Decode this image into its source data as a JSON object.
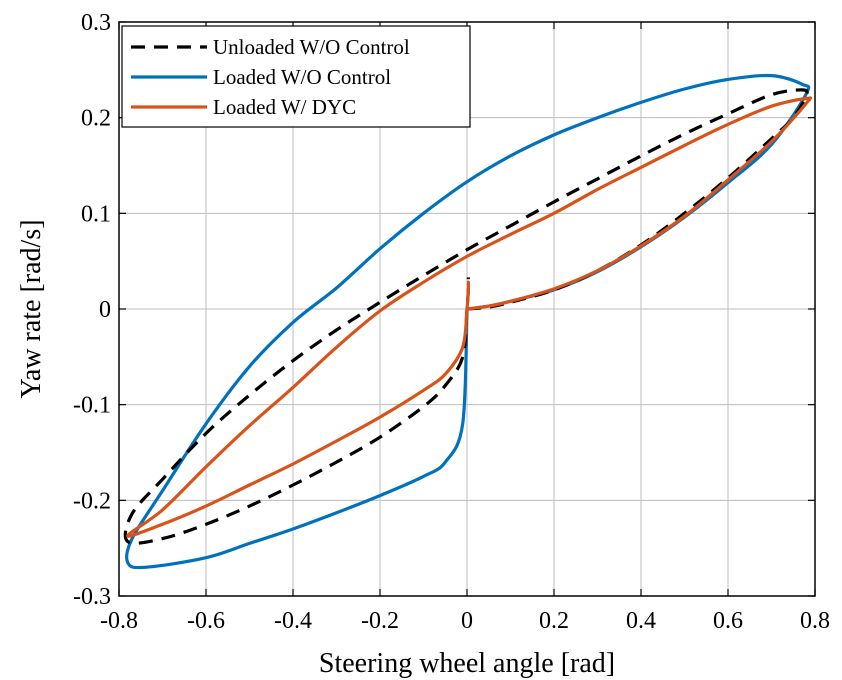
{
  "chart_data": {
    "type": "line",
    "title": "",
    "xlabel": "Steering wheel angle [rad]",
    "ylabel": "Yaw rate [rad/s]",
    "xlim": [
      -0.8,
      0.8
    ],
    "ylim": [
      -0.3,
      0.3
    ],
    "xticks": [
      -0.8,
      -0.6,
      -0.4,
      -0.2,
      0,
      0.2,
      0.4,
      0.6,
      0.8
    ],
    "yticks": [
      -0.3,
      -0.2,
      -0.1,
      0,
      0.1,
      0.2,
      0.3
    ],
    "xtick_labels": [
      "-0.8",
      "-0.6",
      "-0.4",
      "-0.2",
      "0",
      "0.2",
      "0.4",
      "0.6",
      "0.8"
    ],
    "ytick_labels": [
      "-0.3",
      "-0.2",
      "-0.1",
      "0",
      "0.1",
      "0.2",
      "0.3"
    ],
    "grid": true,
    "legend_position": "top-left",
    "series": [
      {
        "name": "Unloaded W/O Control",
        "color": "#000000",
        "dash": "dashed",
        "x": [
          0.0,
          0.05,
          0.1,
          0.2,
          0.3,
          0.4,
          0.5,
          0.6,
          0.7,
          0.75,
          0.78,
          0.77,
          0.7,
          0.6,
          0.5,
          0.4,
          0.3,
          0.2,
          0.1,
          0.0,
          -0.1,
          -0.2,
          -0.3,
          -0.4,
          -0.5,
          -0.6,
          -0.7,
          -0.77,
          -0.78,
          -0.7,
          -0.6,
          -0.5,
          -0.4,
          -0.3,
          -0.2,
          -0.1,
          -0.05,
          -0.01,
          0.0,
          0.003,
          0.003
        ],
        "y": [
          0.0,
          0.002,
          0.007,
          0.02,
          0.04,
          0.067,
          0.1,
          0.137,
          0.178,
          0.2,
          0.223,
          0.229,
          0.224,
          0.204,
          0.183,
          0.16,
          0.136,
          0.112,
          0.087,
          0.062,
          0.035,
          0.007,
          -0.022,
          -0.054,
          -0.09,
          -0.13,
          -0.178,
          -0.214,
          -0.243,
          -0.24,
          -0.225,
          -0.206,
          -0.184,
          -0.16,
          -0.134,
          -0.102,
          -0.08,
          -0.05,
          0.0,
          0.02,
          0.033
        ]
      },
      {
        "name": "Loaded W/O Control",
        "color": "#0072BD",
        "dash": "solid",
        "x": [
          0.0,
          0.05,
          0.1,
          0.2,
          0.3,
          0.4,
          0.5,
          0.6,
          0.7,
          0.78,
          0.77,
          0.7,
          0.6,
          0.5,
          0.4,
          0.3,
          0.2,
          0.1,
          0.0,
          -0.1,
          -0.2,
          -0.3,
          -0.4,
          -0.5,
          -0.6,
          -0.7,
          -0.77,
          -0.78,
          -0.74,
          -0.6,
          -0.5,
          -0.4,
          -0.3,
          -0.2,
          -0.1,
          -0.05,
          -0.01,
          0.0
        ],
        "y": [
          0.0,
          0.003,
          0.008,
          0.02,
          0.039,
          0.065,
          0.096,
          0.132,
          0.172,
          0.225,
          0.235,
          0.244,
          0.24,
          0.23,
          0.216,
          0.2,
          0.182,
          0.16,
          0.133,
          0.1,
          0.063,
          0.022,
          -0.014,
          -0.06,
          -0.12,
          -0.19,
          -0.24,
          -0.265,
          -0.27,
          -0.26,
          -0.245,
          -0.23,
          -0.213,
          -0.195,
          -0.175,
          -0.16,
          -0.12,
          0.0
        ]
      },
      {
        "name": "Loaded W/ DYC",
        "color": "#D95319",
        "dash": "solid",
        "x": [
          0.0,
          0.05,
          0.1,
          0.2,
          0.3,
          0.4,
          0.5,
          0.6,
          0.7,
          0.78,
          0.78,
          0.7,
          0.6,
          0.5,
          0.4,
          0.3,
          0.2,
          0.1,
          0.0,
          -0.1,
          -0.2,
          -0.3,
          -0.4,
          -0.5,
          -0.6,
          -0.7,
          -0.78,
          -0.7,
          -0.6,
          -0.5,
          -0.4,
          -0.3,
          -0.2,
          -0.1,
          -0.05,
          -0.01,
          0.0,
          0.003,
          0.003
        ],
        "y": [
          0.0,
          0.003,
          0.008,
          0.021,
          0.04,
          0.066,
          0.097,
          0.135,
          0.175,
          0.215,
          0.22,
          0.212,
          0.193,
          0.171,
          0.148,
          0.125,
          0.1,
          0.078,
          0.055,
          0.028,
          -0.002,
          -0.04,
          -0.082,
          -0.122,
          -0.165,
          -0.21,
          -0.237,
          -0.225,
          -0.206,
          -0.184,
          -0.162,
          -0.138,
          -0.113,
          -0.085,
          -0.068,
          -0.04,
          0.0,
          0.018,
          0.028
        ]
      }
    ]
  }
}
